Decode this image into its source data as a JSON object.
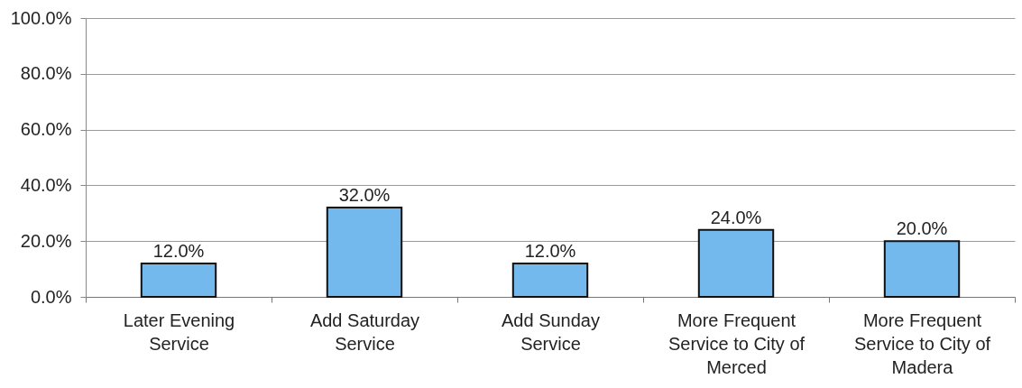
{
  "chart_data": {
    "type": "bar",
    "categories": [
      "Later Evening Service",
      "Add Saturday Service",
      "Add Sunday Service",
      "More Frequent Service to City of Merced",
      "More Frequent Service to City of Madera"
    ],
    "values": [
      12,
      32,
      12,
      24,
      20
    ],
    "value_labels": [
      "12.0%",
      "32.0%",
      "12.0%",
      "24.0%",
      "20.0%"
    ],
    "color": "#74b9ee",
    "ylim": [
      0,
      100
    ],
    "yticks": [
      {
        "value": 0,
        "label": "0.0%"
      },
      {
        "value": 20,
        "label": "20.0%"
      },
      {
        "value": 40,
        "label": "40.0%"
      },
      {
        "value": 60,
        "label": "60.0%"
      },
      {
        "value": 80,
        "label": "80.0%"
      },
      {
        "value": 100,
        "label": "100.0%"
      }
    ],
    "grid": "y"
  }
}
